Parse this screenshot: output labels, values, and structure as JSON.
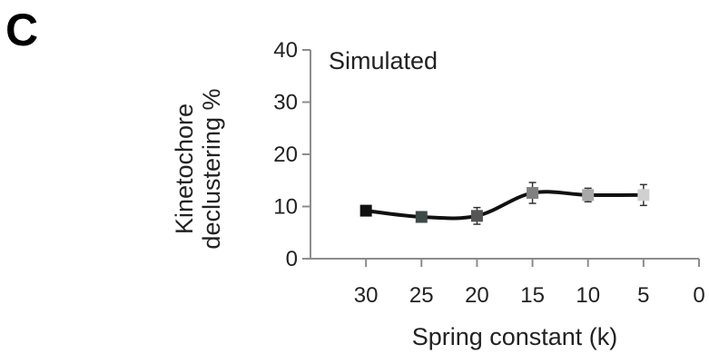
{
  "panel_label": "C",
  "chart_data": {
    "type": "line",
    "annotation": "Simulated",
    "xlabel": "Spring constant (k)",
    "ylabel_lines": [
      "Kinetochore",
      "declustering %"
    ],
    "x_ticks": [
      30,
      25,
      20,
      15,
      10,
      5,
      0
    ],
    "y_ticks": [
      0,
      10,
      20,
      30,
      40
    ],
    "xlim": [
      35,
      0
    ],
    "ylim": [
      0,
      40
    ],
    "x_reversed": true,
    "grid": false,
    "legend": "none",
    "line_color": "#111111",
    "series": [
      {
        "x": [
          30,
          25,
          20,
          15,
          10,
          5
        ],
        "y": [
          9.2,
          8.0,
          8.2,
          12.6,
          12.2,
          12.2
        ],
        "error": [
          0,
          0,
          1.6,
          2.0,
          1.3,
          2.0
        ],
        "marker_colors": [
          "#111111",
          "#3d4a47",
          "#555555",
          "#808080",
          "#a8a8a8",
          "#d0d0d0"
        ]
      }
    ]
  }
}
